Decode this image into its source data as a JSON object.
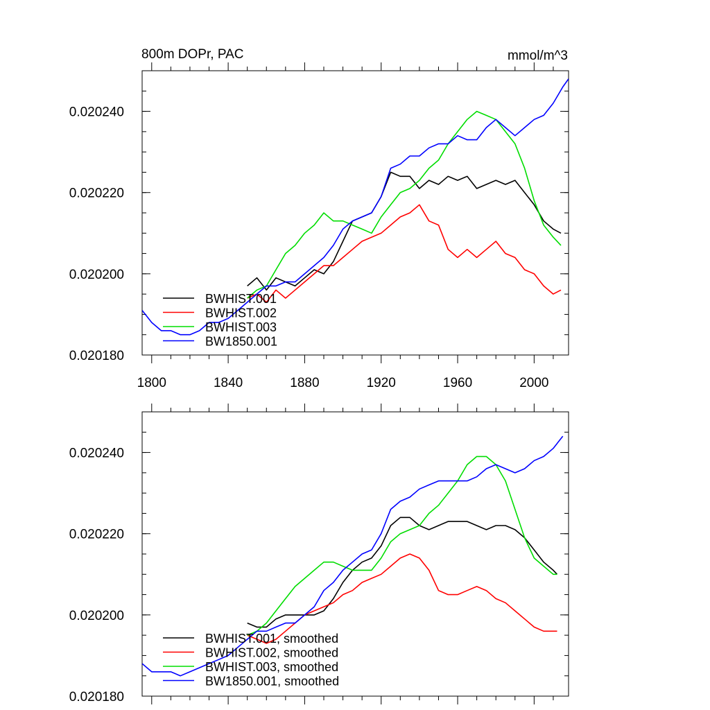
{
  "chart_data": [
    {
      "type": "line",
      "title": "800m DOPr, PAC",
      "units": "mmol/m^3",
      "xlabel": "",
      "ylabel": "",
      "xlim": [
        1795,
        2018
      ],
      "ylim": [
        0.02018,
        0.02025
      ],
      "x_ticks": [
        1800,
        1840,
        1880,
        1920,
        1960,
        2000
      ],
      "x_tick_labels": [
        "1800",
        "1840",
        "1880",
        "1920",
        "1960",
        "2000"
      ],
      "y_ticks": [
        0.02018,
        0.0202,
        0.02022,
        0.02024
      ],
      "y_tick_labels": [
        "0.020180",
        "0.020200",
        "0.020220",
        "0.020240"
      ],
      "legend_position": "bottom-left",
      "series": [
        {
          "name": "BWHIST.001",
          "color": "#000000",
          "x": [
            1850,
            1855,
            1860,
            1865,
            1870,
            1875,
            1880,
            1885,
            1890,
            1895,
            1900,
            1905,
            1910,
            1915,
            1920,
            1925,
            1930,
            1935,
            1940,
            1945,
            1950,
            1955,
            1960,
            1965,
            1970,
            1975,
            1980,
            1985,
            1990,
            1995,
            2000,
            2005,
            2010,
            2014
          ],
          "y": [
            0.020197,
            0.020199,
            0.020196,
            0.020199,
            0.020198,
            0.020197,
            0.020199,
            0.020201,
            0.0202,
            0.020203,
            0.020208,
            0.020213,
            0.020214,
            0.020215,
            0.020219,
            0.020225,
            0.020224,
            0.020224,
            0.020221,
            0.020223,
            0.020222,
            0.020224,
            0.020223,
            0.020224,
            0.020221,
            0.020222,
            0.020223,
            0.020222,
            0.020223,
            0.02022,
            0.020217,
            0.020213,
            0.020211,
            0.02021
          ]
        },
        {
          "name": "BWHIST.002",
          "color": "#ff0000",
          "x": [
            1850,
            1855,
            1860,
            1865,
            1870,
            1875,
            1880,
            1885,
            1890,
            1895,
            1900,
            1905,
            1910,
            1915,
            1920,
            1925,
            1930,
            1935,
            1940,
            1945,
            1950,
            1955,
            1960,
            1965,
            1970,
            1975,
            1980,
            1985,
            1990,
            1995,
            2000,
            2005,
            2010,
            2014
          ],
          "y": [
            0.020194,
            0.020195,
            0.020193,
            0.020196,
            0.020194,
            0.020196,
            0.020198,
            0.0202,
            0.020202,
            0.020202,
            0.020204,
            0.020206,
            0.020208,
            0.020209,
            0.02021,
            0.020212,
            0.020214,
            0.020215,
            0.020217,
            0.020213,
            0.020212,
            0.020206,
            0.020204,
            0.020206,
            0.020204,
            0.020206,
            0.020208,
            0.020205,
            0.020204,
            0.020201,
            0.0202,
            0.020197,
            0.020195,
            0.020196
          ]
        },
        {
          "name": "BWHIST.003",
          "color": "#00dd00",
          "x": [
            1850,
            1855,
            1860,
            1865,
            1870,
            1875,
            1880,
            1885,
            1890,
            1895,
            1900,
            1905,
            1910,
            1915,
            1920,
            1925,
            1930,
            1935,
            1940,
            1945,
            1950,
            1955,
            1960,
            1965,
            1970,
            1975,
            1980,
            1985,
            1990,
            1995,
            2000,
            2005,
            2010,
            2014
          ],
          "y": [
            0.020194,
            0.020196,
            0.020197,
            0.020201,
            0.020205,
            0.020207,
            0.02021,
            0.020212,
            0.020215,
            0.020213,
            0.020213,
            0.020212,
            0.020211,
            0.02021,
            0.020214,
            0.020217,
            0.02022,
            0.020221,
            0.020223,
            0.020226,
            0.020228,
            0.020232,
            0.020235,
            0.020238,
            0.02024,
            0.020239,
            0.020238,
            0.020235,
            0.020232,
            0.020226,
            0.020218,
            0.020212,
            0.020209,
            0.020207
          ]
        },
        {
          "name": "BW1850.001",
          "color": "#0000ff",
          "x": [
            1795,
            1800,
            1805,
            1810,
            1815,
            1820,
            1825,
            1830,
            1835,
            1840,
            1845,
            1850,
            1855,
            1860,
            1865,
            1870,
            1875,
            1880,
            1885,
            1890,
            1895,
            1900,
            1905,
            1910,
            1915,
            1920,
            1925,
            1930,
            1935,
            1940,
            1945,
            1950,
            1955,
            1960,
            1965,
            1970,
            1975,
            1980,
            1985,
            1990,
            1995,
            2000,
            2005,
            2010,
            2015,
            2018
          ],
          "y": [
            0.020191,
            0.020188,
            0.020186,
            0.020186,
            0.020185,
            0.020185,
            0.020186,
            0.020188,
            0.020188,
            0.020189,
            0.020191,
            0.020193,
            0.020195,
            0.020197,
            0.020197,
            0.020198,
            0.020198,
            0.0202,
            0.020202,
            0.020204,
            0.020207,
            0.020211,
            0.020213,
            0.020214,
            0.020215,
            0.020219,
            0.020226,
            0.020227,
            0.020229,
            0.020229,
            0.020231,
            0.020232,
            0.020232,
            0.020234,
            0.020233,
            0.020233,
            0.020236,
            0.020238,
            0.020236,
            0.020234,
            0.020236,
            0.020238,
            0.020239,
            0.020242,
            0.020246,
            0.020248
          ]
        }
      ]
    },
    {
      "type": "line",
      "title": "",
      "xlabel": "",
      "ylabel": "",
      "xlim": [
        1795,
        2018
      ],
      "ylim": [
        0.02018,
        0.02025
      ],
      "x_ticks": [
        1800,
        1840,
        1880,
        1920,
        1960,
        2000
      ],
      "y_ticks": [
        0.02018,
        0.0202,
        0.02022,
        0.02024
      ],
      "y_tick_labels": [
        "0.020180",
        "0.020200",
        "0.020220",
        "0.020240"
      ],
      "legend_position": "bottom-left",
      "series": [
        {
          "name": "BWHIST.001, smoothed",
          "color": "#000000",
          "x": [
            1850,
            1855,
            1860,
            1865,
            1870,
            1875,
            1880,
            1885,
            1890,
            1895,
            1900,
            1905,
            1910,
            1915,
            1920,
            1925,
            1930,
            1935,
            1940,
            1945,
            1950,
            1955,
            1960,
            1965,
            1970,
            1975,
            1980,
            1985,
            1990,
            1995,
            2000,
            2005,
            2010,
            2012
          ],
          "y": [
            0.020198,
            0.020197,
            0.020197,
            0.020199,
            0.0202,
            0.0202,
            0.0202,
            0.0202,
            0.020201,
            0.020204,
            0.020208,
            0.020211,
            0.020213,
            0.020214,
            0.020217,
            0.020222,
            0.020224,
            0.020224,
            0.020222,
            0.020221,
            0.020222,
            0.020223,
            0.020223,
            0.020223,
            0.020222,
            0.020221,
            0.020222,
            0.020222,
            0.020221,
            0.020219,
            0.020216,
            0.020213,
            0.020211,
            0.02021
          ]
        },
        {
          "name": "BWHIST.002, smoothed",
          "color": "#ff0000",
          "x": [
            1850,
            1855,
            1860,
            1865,
            1870,
            1875,
            1880,
            1885,
            1890,
            1895,
            1900,
            1905,
            1910,
            1915,
            1920,
            1925,
            1930,
            1935,
            1940,
            1945,
            1950,
            1955,
            1960,
            1965,
            1970,
            1975,
            1980,
            1985,
            1990,
            1995,
            2000,
            2005,
            2010,
            2012
          ],
          "y": [
            0.020195,
            0.020194,
            0.020193,
            0.020194,
            0.020196,
            0.020198,
            0.0202,
            0.020201,
            0.020202,
            0.020203,
            0.020205,
            0.020206,
            0.020208,
            0.020209,
            0.02021,
            0.020212,
            0.020214,
            0.020215,
            0.020214,
            0.020211,
            0.020206,
            0.020205,
            0.020205,
            0.020206,
            0.020207,
            0.020206,
            0.020204,
            0.020203,
            0.020201,
            0.020199,
            0.020197,
            0.020196,
            0.020196,
            0.020196
          ]
        },
        {
          "name": "BWHIST.003, smoothed",
          "color": "#00dd00",
          "x": [
            1850,
            1855,
            1860,
            1865,
            1870,
            1875,
            1880,
            1885,
            1890,
            1895,
            1900,
            1905,
            1910,
            1915,
            1920,
            1925,
            1930,
            1935,
            1940,
            1945,
            1950,
            1955,
            1960,
            1965,
            1970,
            1975,
            1980,
            1985,
            1990,
            1995,
            2000,
            2005,
            2010,
            2012
          ],
          "y": [
            0.020195,
            0.020196,
            0.020198,
            0.020201,
            0.020204,
            0.020207,
            0.020209,
            0.020211,
            0.020213,
            0.020213,
            0.020212,
            0.020211,
            0.020211,
            0.020211,
            0.020214,
            0.020218,
            0.02022,
            0.020221,
            0.020222,
            0.020225,
            0.020227,
            0.02023,
            0.020233,
            0.020237,
            0.020239,
            0.020239,
            0.020237,
            0.020233,
            0.020226,
            0.020219,
            0.020214,
            0.020212,
            0.02021,
            0.02021
          ]
        },
        {
          "name": "BW1850.001, smoothed",
          "color": "#0000ff",
          "x": [
            1795,
            1800,
            1805,
            1810,
            1815,
            1820,
            1825,
            1830,
            1835,
            1840,
            1845,
            1850,
            1855,
            1860,
            1865,
            1870,
            1875,
            1880,
            1885,
            1890,
            1895,
            1900,
            1905,
            1910,
            1915,
            1920,
            1925,
            1930,
            1935,
            1940,
            1945,
            1950,
            1955,
            1960,
            1965,
            1970,
            1975,
            1980,
            1985,
            1990,
            1995,
            2000,
            2005,
            2010,
            2015
          ],
          "y": [
            0.020188,
            0.020186,
            0.020186,
            0.020186,
            0.020185,
            0.020186,
            0.020187,
            0.020188,
            0.020189,
            0.02019,
            0.020192,
            0.020194,
            0.020196,
            0.020196,
            0.020197,
            0.020198,
            0.020198,
            0.0202,
            0.020202,
            0.020206,
            0.020208,
            0.020211,
            0.020213,
            0.020215,
            0.020216,
            0.02022,
            0.020226,
            0.020228,
            0.020229,
            0.020231,
            0.020232,
            0.020233,
            0.020233,
            0.020233,
            0.020233,
            0.020234,
            0.020236,
            0.020237,
            0.020236,
            0.020235,
            0.020236,
            0.020238,
            0.020239,
            0.020241,
            0.020244
          ]
        }
      ]
    }
  ]
}
